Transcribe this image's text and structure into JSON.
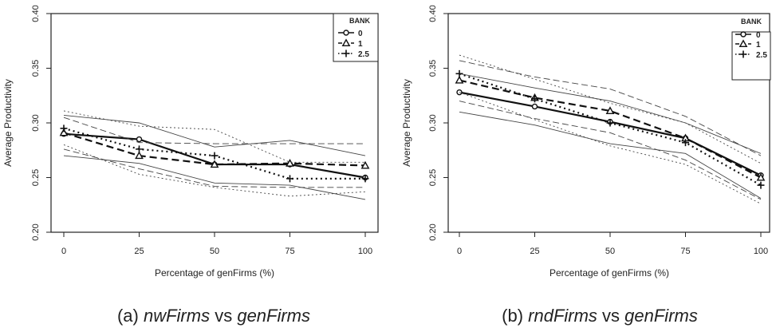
{
  "chart_data": [
    {
      "type": "line",
      "panel": "a",
      "caption_prefix": "(a) ",
      "caption_italic_1": "nwFirms",
      "caption_mid": " vs ",
      "caption_italic_2": "genFirms",
      "xlabel": "Percentage of genFirms (%)",
      "ylabel": "Average Productivity",
      "x": [
        0,
        25,
        50,
        75,
        100
      ],
      "xticks": [
        "0",
        "25",
        "50",
        "75",
        "100"
      ],
      "yticks": [
        "0.20",
        "0.25",
        "0.30",
        "0.35",
        "0.40"
      ],
      "ylim": [
        0.2,
        0.4
      ],
      "grid": false,
      "legend": {
        "title": "BANK",
        "placement": "top-right"
      },
      "series": [
        {
          "name": "0",
          "style": "solid",
          "marker": "circle",
          "values": [
            0.29,
            0.285,
            0.262,
            0.262,
            0.25
          ],
          "upper": [
            0.307,
            0.3,
            0.278,
            0.284,
            0.27
          ],
          "lower": [
            0.27,
            0.263,
            0.245,
            0.243,
            0.23
          ]
        },
        {
          "name": "1",
          "style": "dashed",
          "marker": "triangle",
          "values": [
            0.291,
            0.27,
            0.262,
            0.263,
            0.261
          ],
          "upper": [
            0.305,
            0.282,
            0.281,
            0.281,
            0.281
          ],
          "lower": [
            0.276,
            0.258,
            0.242,
            0.241,
            0.241
          ]
        },
        {
          "name": "2.5",
          "style": "dotted",
          "marker": "plus",
          "values": [
            0.295,
            0.276,
            0.27,
            0.249,
            0.249
          ],
          "upper": [
            0.311,
            0.297,
            0.294,
            0.264,
            0.264
          ],
          "lower": [
            0.28,
            0.253,
            0.241,
            0.233,
            0.237
          ]
        }
      ]
    },
    {
      "type": "line",
      "panel": "b",
      "caption_prefix": "(b) ",
      "caption_italic_1": "rndFirms",
      "caption_mid": " vs ",
      "caption_italic_2": "genFirms",
      "xlabel": "Percentage of genFirms (%)",
      "ylabel": "Average Productivity",
      "x": [
        0,
        25,
        50,
        75,
        100
      ],
      "xticks": [
        "0",
        "25",
        "50",
        "75",
        "100"
      ],
      "yticks": [
        "0.20",
        "0.25",
        "0.30",
        "0.35",
        "0.40"
      ],
      "ylim": [
        0.2,
        0.4
      ],
      "grid": false,
      "legend": {
        "title": "BANK",
        "placement": "top-right"
      },
      "series": [
        {
          "name": "0",
          "style": "solid",
          "marker": "circle",
          "values": [
            0.328,
            0.315,
            0.301,
            0.286,
            0.252
          ],
          "upper": [
            0.345,
            0.332,
            0.32,
            0.3,
            0.272
          ],
          "lower": [
            0.31,
            0.298,
            0.281,
            0.272,
            0.231
          ]
        },
        {
          "name": "1",
          "style": "dashed",
          "marker": "triangle",
          "values": [
            0.339,
            0.323,
            0.311,
            0.286,
            0.25
          ],
          "upper": [
            0.357,
            0.342,
            0.331,
            0.306,
            0.27
          ],
          "lower": [
            0.32,
            0.304,
            0.291,
            0.266,
            0.23
          ]
        },
        {
          "name": "2.5",
          "style": "dotted",
          "marker": "plus",
          "values": [
            0.345,
            0.322,
            0.3,
            0.282,
            0.243
          ],
          "upper": [
            0.362,
            0.34,
            0.318,
            0.3,
            0.263
          ],
          "lower": [
            0.328,
            0.303,
            0.279,
            0.262,
            0.226
          ]
        }
      ]
    }
  ]
}
